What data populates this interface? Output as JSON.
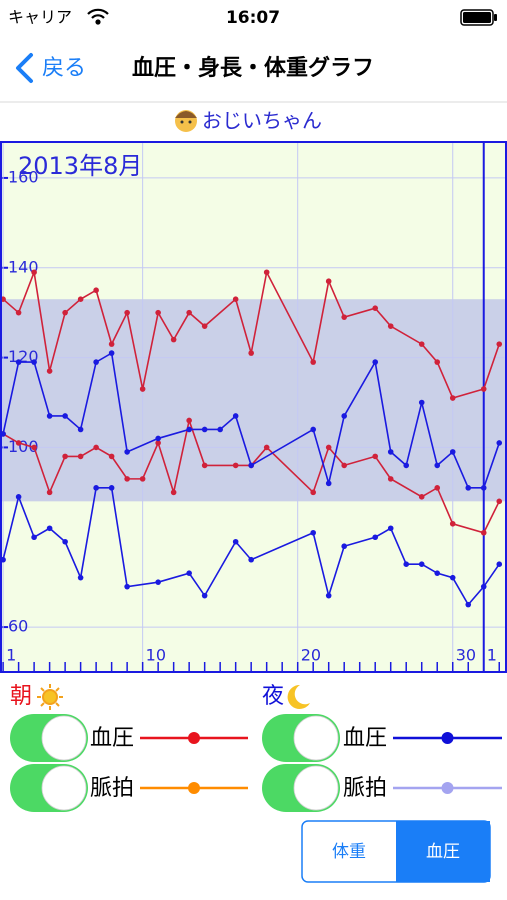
{
  "status_bar": {
    "carrier": "キャリア",
    "time": "16:07"
  },
  "nav": {
    "back": "戻る",
    "title": "血圧・身長・体重グラフ"
  },
  "user_name": "おじいちゃん",
  "chart_data": {
    "type": "line",
    "title": "2013年8月",
    "xlim": [
      0.8,
      33.5
    ],
    "ylim": [
      50,
      168
    ],
    "xticks": [
      1,
      10,
      20,
      30,
      {
        "value": 32,
        "label": "1"
      }
    ],
    "yticks": [
      60,
      100,
      120,
      140,
      160
    ],
    "band": [
      88,
      133
    ],
    "band_color": "#c5cbe8",
    "background": "#f4fde6",
    "grid": true,
    "series": [
      {
        "color": "#d0223a",
        "x": [
          1,
          2,
          3,
          4,
          5,
          6,
          7,
          8,
          9,
          10,
          11,
          12,
          13,
          14,
          16,
          17,
          18,
          21,
          22,
          23,
          25,
          26,
          28,
          29,
          30,
          32,
          33
        ],
        "values": [
          133,
          130,
          139,
          117,
          130,
          133,
          135,
          123,
          130,
          113,
          130,
          124,
          130,
          127,
          133,
          121,
          139,
          119,
          137,
          129,
          131,
          127,
          123,
          119,
          111,
          113,
          123
        ]
      },
      {
        "color": "#d0223a",
        "x": [
          1,
          2,
          3,
          4,
          5,
          6,
          7,
          8,
          9,
          10,
          11,
          12,
          13,
          14,
          16,
          17,
          18,
          21,
          22,
          23,
          25,
          26,
          28,
          29,
          30,
          32,
          33
        ],
        "values": [
          103,
          101,
          100,
          90,
          98,
          98,
          100,
          98,
          93,
          93,
          101,
          90,
          106,
          96,
          96,
          96,
          100,
          90,
          100,
          96,
          98,
          93,
          89,
          91,
          83,
          81,
          88
        ]
      },
      {
        "color": "#1a1ae0",
        "x": [
          1,
          2,
          3,
          4,
          5,
          6,
          7,
          8,
          9,
          11,
          13,
          14,
          15,
          16,
          17,
          21,
          22,
          23,
          25,
          26,
          27,
          28,
          29,
          30,
          31,
          32,
          33
        ],
        "values": [
          103,
          119,
          119,
          107,
          107,
          104,
          119,
          121,
          99,
          102,
          104,
          104,
          104,
          107,
          96,
          104,
          92,
          107,
          119,
          99,
          96,
          110,
          96,
          99,
          91,
          91,
          101
        ]
      },
      {
        "color": "#1a1ae0",
        "x": [
          1,
          2,
          3,
          4,
          5,
          6,
          7,
          8,
          9,
          11,
          13,
          14,
          16,
          17,
          21,
          22,
          23,
          25,
          26,
          27,
          28,
          29,
          30,
          31,
          32,
          33
        ],
        "values": [
          75,
          89,
          80,
          82,
          79,
          71,
          91,
          91,
          69,
          70,
          72,
          67,
          79,
          75,
          81,
          67,
          78,
          80,
          82,
          74,
          74,
          72,
          71,
          65,
          69,
          74
        ]
      }
    ]
  },
  "controls": {
    "morning": {
      "label": "朝",
      "rows": [
        {
          "label": "血圧",
          "color": "#e8141e"
        },
        {
          "label": "脈拍",
          "color": "#ff8c00"
        }
      ]
    },
    "night": {
      "label": "夜",
      "rows": [
        {
          "label": "血圧",
          "color": "#1010d8"
        },
        {
          "label": "脈拍",
          "color": "#a4a4f0"
        }
      ]
    }
  },
  "segmented": {
    "items": [
      "体重",
      "血圧"
    ],
    "selected": 1
  }
}
